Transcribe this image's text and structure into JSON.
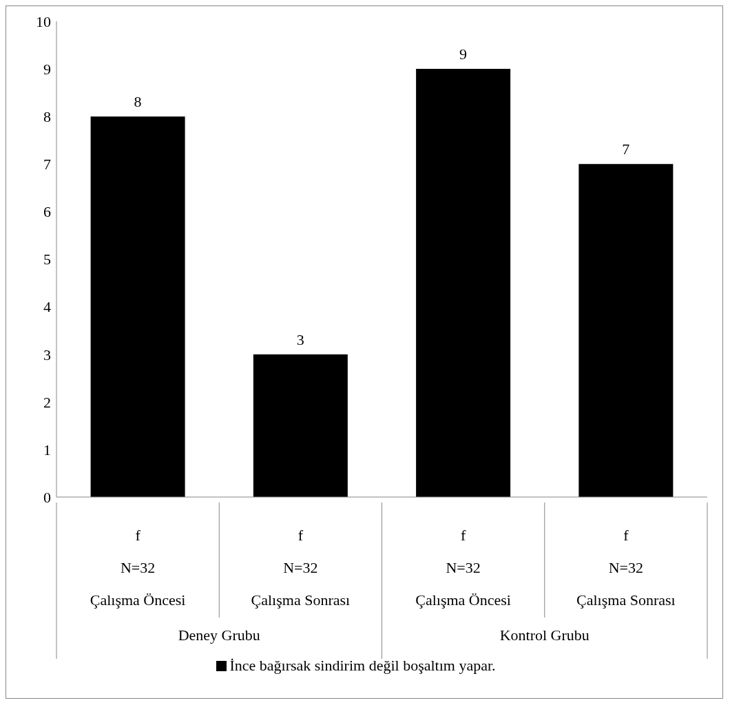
{
  "chart_data": {
    "type": "bar",
    "categories": [
      "f\nN=32\nÇalışma Öncesi",
      "f\nN=32\nÇalışma Sonrası",
      "f\nN=32\nÇalışma Öncesi",
      "f\nN=32\nÇalışma Sonrası"
    ],
    "series": [
      {
        "name": "İnce bağırsak sindirim değil boşaltım yapar.",
        "color": "#000000",
        "values": [
          8,
          3,
          9,
          7
        ]
      }
    ],
    "annotations": [
      "Deney Grubu",
      "Kontrol Grubu"
    ],
    "ylim": [
      0,
      10
    ],
    "yticks": [
      0,
      1,
      2,
      3,
      4,
      5,
      6,
      7,
      8,
      9,
      10
    ],
    "grid": false,
    "legend": "bottom",
    "data_labels": true
  }
}
